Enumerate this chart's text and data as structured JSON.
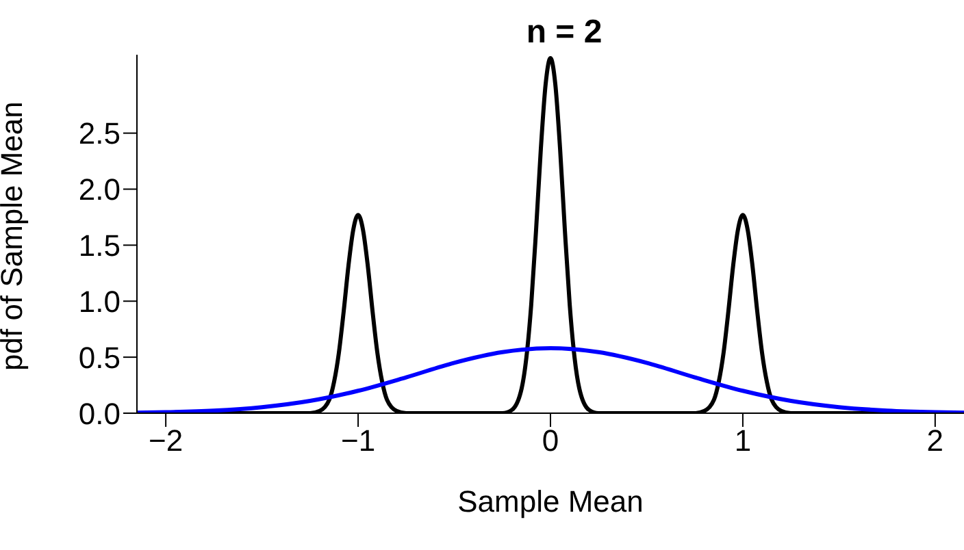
{
  "chart_data": {
    "type": "line",
    "title": "n = 2",
    "xlabel": "Sample Mean",
    "ylabel": "pdf of Sample Mean",
    "xlim": [
      -2.15,
      2.15
    ],
    "xticks": [
      {
        "value": -2,
        "label": "−2"
      },
      {
        "value": -1,
        "label": "−1"
      },
      0,
      1,
      2
    ],
    "ylim": [
      0,
      3.2
    ],
    "yticks": [
      {
        "value": 0,
        "label": "0.0"
      },
      0.5,
      {
        "value": 1,
        "label": "1.0"
      },
      1.5,
      {
        "value": 2,
        "label": "2.0"
      },
      2.5
    ],
    "series": [
      {
        "color": "#000000",
        "x": [
          -2.15,
          -1.5,
          -1.3,
          -1.25,
          -1.2,
          -1.15,
          -1.125,
          -1.1,
          -1.075,
          -1.05,
          -1.025,
          -1,
          -0.975,
          -0.95,
          -0.925,
          -0.9,
          -0.875,
          -0.85,
          -0.8,
          -0.75,
          -0.7,
          -0.3,
          -0.25,
          -0.2,
          -0.15,
          -0.125,
          -0.1,
          -0.075,
          -0.05,
          -0.025,
          0,
          0.025,
          0.05,
          0.075,
          0.1,
          0.125,
          0.15,
          0.2,
          0.25,
          0.3,
          0.7,
          0.75,
          0.8,
          0.85,
          0.875,
          0.9,
          0.925,
          0.95,
          0.975,
          1,
          1.025,
          1.05,
          1.075,
          1.1,
          1.125,
          1.15,
          1.2,
          1.25,
          1.3,
          1.5,
          2.15
        ],
        "values": [
          0,
          0,
          0,
          0,
          0.02,
          0.12,
          0.28,
          0.54,
          0.91,
          1.32,
          1.64,
          1.77,
          1.64,
          1.32,
          0.91,
          0.54,
          0.28,
          0.12,
          0.02,
          0,
          0,
          0,
          0,
          0.03,
          0.22,
          0.5,
          0.97,
          1.63,
          2.36,
          2.94,
          3.17,
          2.94,
          2.36,
          1.63,
          0.97,
          0.5,
          0.22,
          0.03,
          0,
          0,
          0,
          0,
          0.02,
          0.12,
          0.28,
          0.54,
          0.91,
          1.32,
          1.64,
          1.77,
          1.64,
          1.32,
          0.91,
          0.54,
          0.28,
          0.12,
          0.02,
          0,
          0,
          0,
          0
        ]
      },
      {
        "color": "#0000ff",
        "x": [
          -2.15,
          -2,
          -1.75,
          -1.5,
          -1.25,
          -1,
          -0.75,
          -0.5,
          -0.25,
          0,
          0.25,
          0.5,
          0.75,
          1,
          1.25,
          1.5,
          1.75,
          2,
          2.15
        ],
        "values": [
          0.005,
          0.009,
          0.023,
          0.054,
          0.11,
          0.2,
          0.32,
          0.45,
          0.545,
          0.58,
          0.545,
          0.45,
          0.32,
          0.2,
          0.11,
          0.054,
          0.023,
          0.009,
          0.005
        ]
      }
    ]
  }
}
